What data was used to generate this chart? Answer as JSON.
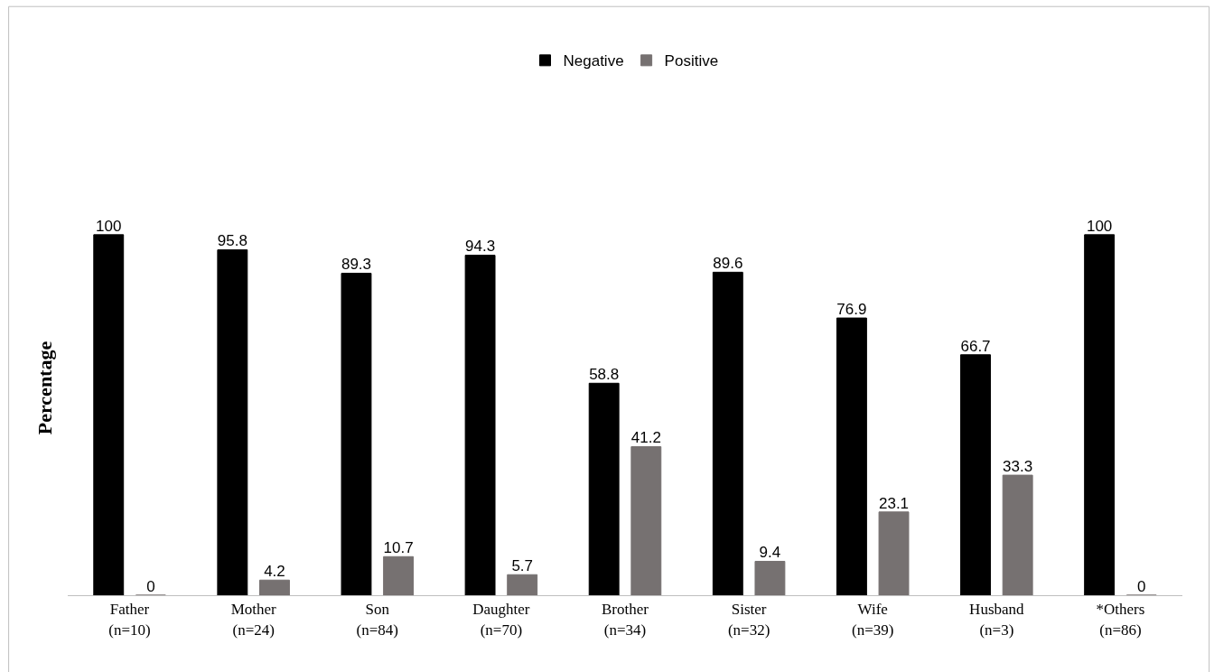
{
  "chart_data": {
    "type": "bar",
    "ylabel": "Percentage",
    "categories": [
      "Father\n(n=10)",
      "Mother\n(n=24)",
      "Son\n(n=84)",
      "Daughter\n(n=70)",
      "Brother\n(n=34)",
      "Sister\n(n=32)",
      "Wife\n(n=39)",
      "Husband\n(n=3)",
      "*Others\n(n=86)"
    ],
    "series": [
      {
        "name": "Negative",
        "color": "#000000",
        "values": [
          100,
          95.8,
          89.3,
          94.3,
          58.8,
          89.6,
          76.9,
          66.7,
          100
        ]
      },
      {
        "name": "Positive",
        "color": "#767171",
        "values": [
          0,
          4.2,
          10.7,
          5.7,
          41.2,
          9.4,
          23.1,
          33.3,
          0
        ]
      }
    ],
    "tick_labels": "x",
    "data_labels": true,
    "legend": "top"
  }
}
